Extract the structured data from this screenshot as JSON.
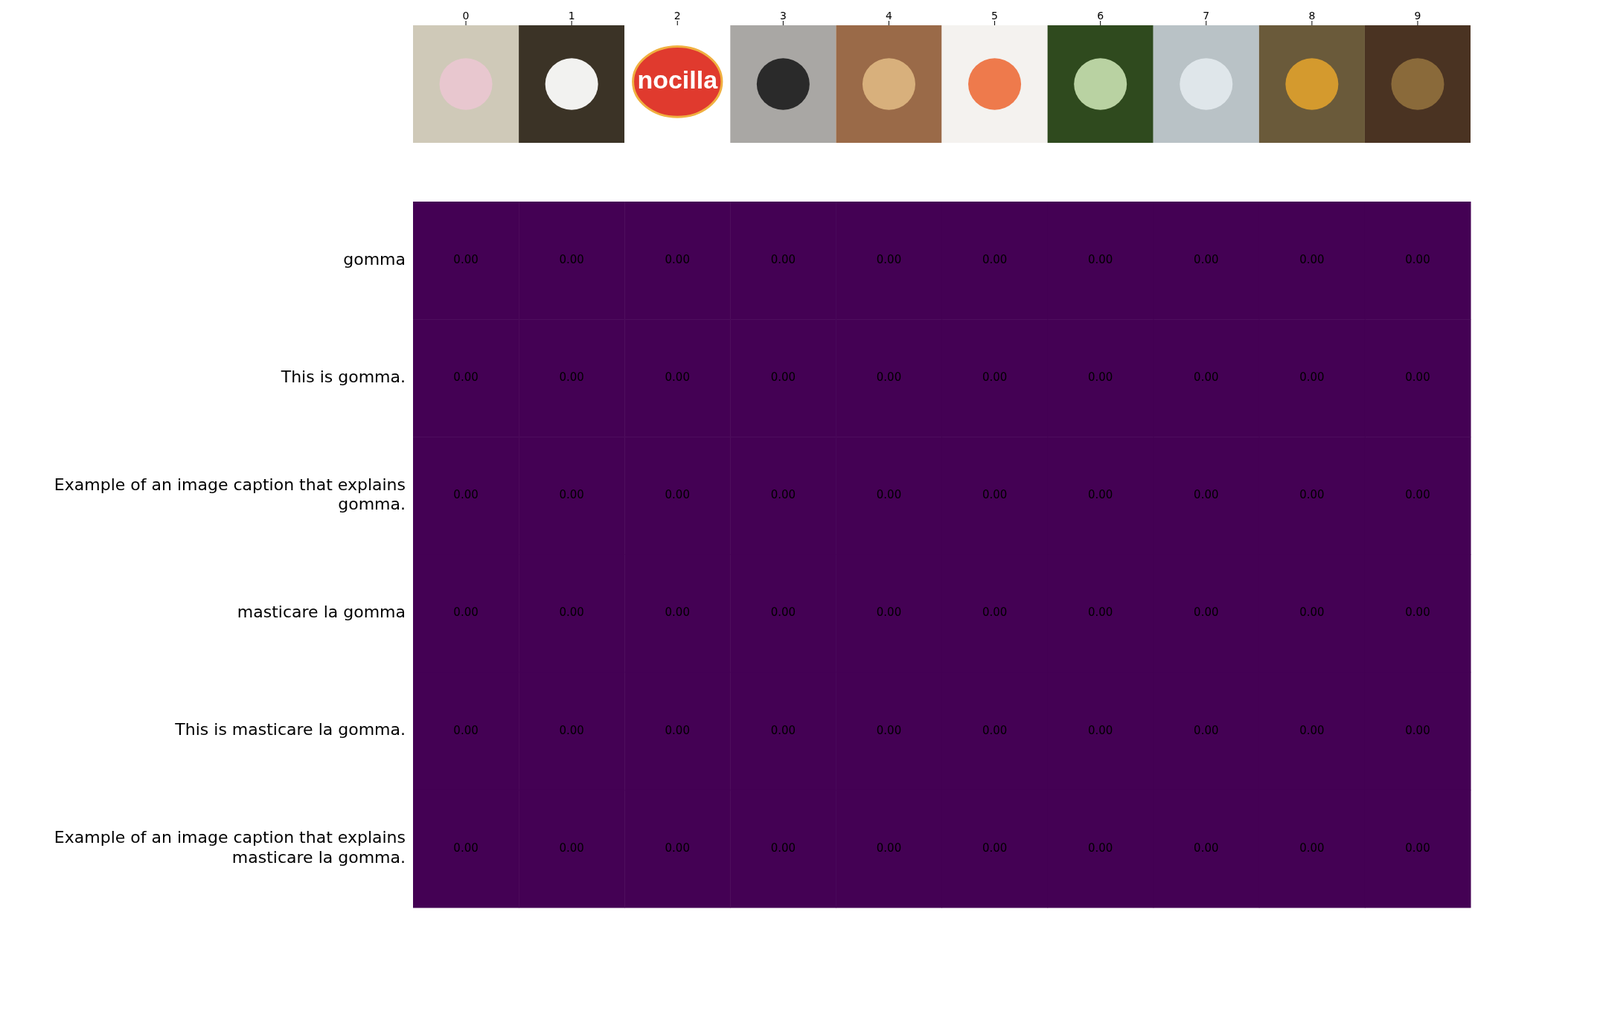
{
  "chart_data": {
    "type": "heatmap",
    "rows": [
      "gomma",
      "This is gomma.",
      "Example of an image caption that explains gomma.",
      "masticare la gomma",
      "This is masticare la gomma.",
      "Example of an image caption that explains masticare la gomma."
    ],
    "x": [
      0,
      1,
      2,
      3,
      4,
      5,
      6,
      7,
      8,
      9
    ],
    "xlim": [
      -0.5,
      9.5
    ],
    "xticks": [
      0,
      1,
      2,
      3,
      4,
      5,
      6,
      7,
      8,
      9
    ],
    "values": [
      [
        0,
        0,
        0,
        0,
        0,
        0,
        0,
        0,
        0,
        0
      ],
      [
        0,
        0,
        0,
        0,
        0,
        0,
        0,
        0,
        0,
        0
      ],
      [
        0,
        0,
        0,
        0,
        0,
        0,
        0,
        0,
        0,
        0
      ],
      [
        0,
        0,
        0,
        0,
        0,
        0,
        0,
        0,
        0,
        0
      ],
      [
        0,
        0,
        0,
        0,
        0,
        0,
        0,
        0,
        0,
        0
      ],
      [
        0,
        0,
        0,
        0,
        0,
        0,
        0,
        0,
        0,
        0
      ]
    ],
    "value_labels": [
      [
        "0.00",
        "0.00",
        "0.00",
        "0.00",
        "0.00",
        "0.00",
        "0.00",
        "0.00",
        "0.00",
        "0.00"
      ],
      [
        "0.00",
        "0.00",
        "0.00",
        "0.00",
        "0.00",
        "0.00",
        "0.00",
        "0.00",
        "0.00",
        "0.00"
      ],
      [
        "0.00",
        "0.00",
        "0.00",
        "0.00",
        "0.00",
        "0.00",
        "0.00",
        "0.00",
        "0.00",
        "0.00"
      ],
      [
        "0.00",
        "0.00",
        "0.00",
        "0.00",
        "0.00",
        "0.00",
        "0.00",
        "0.00",
        "0.00",
        "0.00"
      ],
      [
        "0.00",
        "0.00",
        "0.00",
        "0.00",
        "0.00",
        "0.00",
        "0.00",
        "0.00",
        "0.00",
        "0.00"
      ],
      [
        "0.00",
        "0.00",
        "0.00",
        "0.00",
        "0.00",
        "0.00",
        "0.00",
        "0.00",
        "0.00",
        "0.00"
      ]
    ],
    "data_labels": true,
    "color": "#440154",
    "image_texts": [
      null,
      null,
      "nocilla",
      null,
      null,
      null,
      null,
      null,
      null,
      null
    ]
  }
}
